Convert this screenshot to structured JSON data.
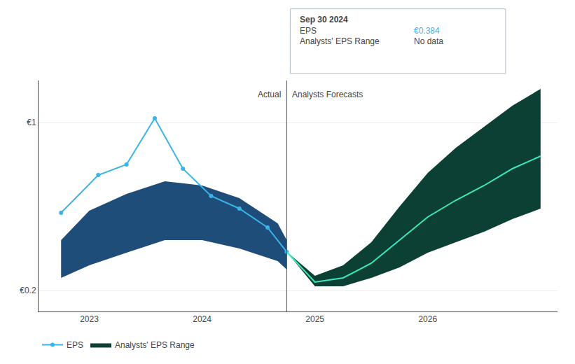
{
  "chart_data": {
    "type": "line",
    "xlim": [
      2022.55,
      2027.15
    ],
    "xticks": [
      2023,
      2024,
      2025,
      2026
    ],
    "ylim": [
      0.1,
      1.2
    ],
    "yticks": [
      {
        "value": 0.2,
        "label": "€0.2"
      },
      {
        "value": 1.0,
        "label": "€1"
      }
    ],
    "grid": "y",
    "legend": "bottom left",
    "series": [
      {
        "type": "band",
        "color": "#1e4d7a",
        "x": [
          2022.75,
          2023.0,
          2023.33,
          2023.67,
          2024.0,
          2024.33,
          2024.67,
          2024.75
        ],
        "upper": [
          0.44,
          0.58,
          0.66,
          0.72,
          0.7,
          0.64,
          0.52,
          0.44
        ],
        "lower": [
          0.26,
          0.32,
          0.38,
          0.44,
          0.44,
          0.4,
          0.34,
          0.3
        ]
      },
      {
        "name": "Analysts' EPS Range",
        "type": "band",
        "color": "#0d4035",
        "x": [
          2024.75,
          2025.0,
          2025.25,
          2025.5,
          2025.75,
          2026.0,
          2026.25,
          2026.5,
          2026.75,
          2027.0
        ],
        "upper": [
          0.384,
          0.27,
          0.32,
          0.43,
          0.6,
          0.76,
          0.88,
          0.98,
          1.08,
          1.16
        ],
        "lower": [
          0.384,
          0.22,
          0.22,
          0.26,
          0.31,
          0.38,
          0.43,
          0.48,
          0.54,
          0.59
        ]
      },
      {
        "name": "EPS",
        "type": "line",
        "color": "#3ab4e8",
        "marker": "circle",
        "x": [
          2022.75,
          2023.08,
          2023.33,
          2023.58,
          2023.83,
          2024.08,
          2024.33,
          2024.58,
          2024.75
        ],
        "values": [
          0.57,
          0.75,
          0.8,
          1.02,
          0.78,
          0.65,
          0.59,
          0.5,
          0.384
        ]
      },
      {
        "type": "line",
        "color": "#3de8c0",
        "x": [
          2024.75,
          2025.0,
          2025.25,
          2025.5,
          2025.75,
          2026.0,
          2026.25,
          2026.5,
          2026.75,
          2027.0
        ],
        "values": [
          0.384,
          0.24,
          0.26,
          0.33,
          0.44,
          0.55,
          0.63,
          0.7,
          0.78,
          0.84
        ]
      }
    ],
    "vlines": [
      {
        "x": 2024.75,
        "color": "#3a5070"
      }
    ],
    "annotations": [
      {
        "text": "Actual",
        "x": 2024.75,
        "y": 1.135
      },
      {
        "text": "Analysts Forecasts",
        "x": 2024.75,
        "y": 1.135
      }
    ],
    "tooltip": {
      "title": "Sep 30 2024",
      "rows": [
        {
          "label": "EPS",
          "value": "€0.384",
          "color": "#3ab4e8"
        },
        {
          "label": "Analysts' EPS Range",
          "value": "No data"
        }
      ]
    }
  }
}
